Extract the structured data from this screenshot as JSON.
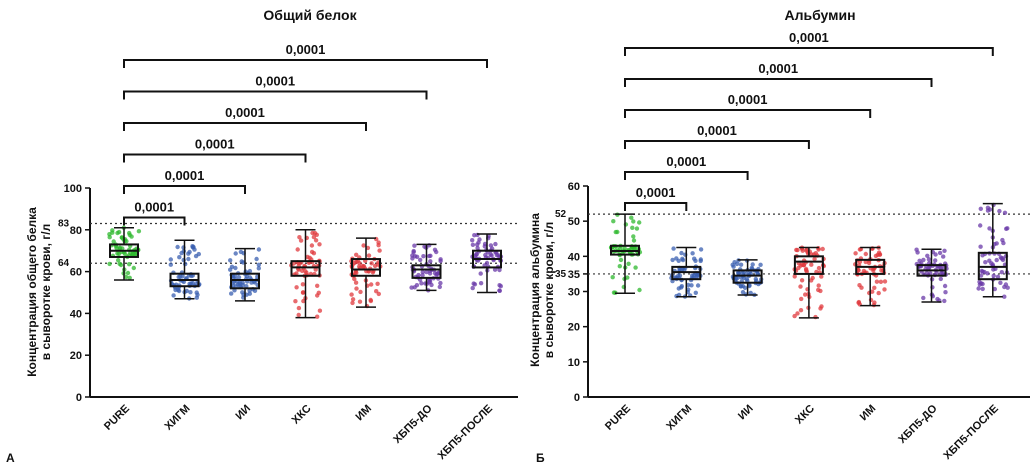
{
  "chart_data": [
    {
      "type": "box",
      "panel_letter": "А",
      "title": "Общий белок",
      "ylabel_line1": "Концентрация общего белка",
      "ylabel_line2": "в сыворотке крови, г/л",
      "ylim": [
        0,
        100
      ],
      "yticks": [
        0,
        20,
        40,
        60,
        80,
        100
      ],
      "reference_lines": [
        64,
        83
      ],
      "reference_labels": [
        "64",
        "83"
      ],
      "categories": [
        "PURE",
        "ХИГМ",
        "ИИ",
        "ХКС",
        "ИМ",
        "ХБП5-ДО",
        "ХБП5-ПОСЛЕ"
      ],
      "colors": [
        "#2eb82e",
        "#3a5fb0",
        "#3a5fb0",
        "#e0393e",
        "#e0393e",
        "#6a3aa8",
        "#6a3aa8"
      ],
      "boxes": [
        {
          "min": 56,
          "q1": 67,
          "median": 70,
          "q3": 73,
          "max": 81
        },
        {
          "min": 47,
          "q1": 53,
          "median": 56,
          "q3": 59,
          "max": 75
        },
        {
          "min": 46,
          "q1": 52,
          "median": 56,
          "q3": 59,
          "max": 71
        },
        {
          "min": 38,
          "q1": 58,
          "median": 62,
          "q3": 65,
          "max": 80
        },
        {
          "min": 43,
          "q1": 58,
          "median": 61,
          "q3": 66,
          "max": 76
        },
        {
          "min": 51,
          "q1": 57,
          "median": 61,
          "q3": 63,
          "max": 73
        },
        {
          "min": 50,
          "q1": 62,
          "median": 66,
          "q3": 70,
          "max": 78
        }
      ],
      "comparisons": [
        {
          "label": "0,0001",
          "from": 0,
          "to": 1
        },
        {
          "label": "0,0001",
          "from": 0,
          "to": 2
        },
        {
          "label": "0,0001",
          "from": 0,
          "to": 3
        },
        {
          "label": "0,0001",
          "from": 0,
          "to": 4
        },
        {
          "label": "0,0001",
          "from": 0,
          "to": 5
        },
        {
          "label": "0,0001",
          "from": 0,
          "to": 6
        }
      ]
    },
    {
      "type": "box",
      "panel_letter": "Б",
      "title": "Альбумин",
      "ylabel_line1": "Концентрация альбумина",
      "ylabel_line2": "в сыворотке крови, г/л",
      "ylim": [
        0,
        60
      ],
      "yticks": [
        0,
        10,
        20,
        30,
        35,
        40,
        50,
        60
      ],
      "reference_lines": [
        35,
        52
      ],
      "reference_labels": [
        "35",
        "52"
      ],
      "categories": [
        "PURE",
        "ХИГМ",
        "ИИ",
        "ХКС",
        "ИМ",
        "ХБП5-ДО",
        "ХБП5-ПОСЛЕ"
      ],
      "colors": [
        "#2eb82e",
        "#3a5fb0",
        "#3a5fb0",
        "#e0393e",
        "#e0393e",
        "#6a3aa8",
        "#6a3aa8"
      ],
      "boxes": [
        {
          "min": 29.5,
          "q1": 40.5,
          "median": 41.5,
          "q3": 43,
          "max": 52
        },
        {
          "min": 28.5,
          "q1": 33.5,
          "median": 35.5,
          "q3": 37,
          "max": 42.5
        },
        {
          "min": 29,
          "q1": 32.5,
          "median": 34.5,
          "q3": 36,
          "max": 39
        },
        {
          "min": 22.5,
          "q1": 35,
          "median": 38.5,
          "q3": 40,
          "max": 42.5
        },
        {
          "min": 26,
          "q1": 35,
          "median": 37,
          "q3": 39,
          "max": 42.5
        },
        {
          "min": 27,
          "q1": 34.5,
          "median": 36,
          "q3": 37.5,
          "max": 42
        },
        {
          "min": 28.5,
          "q1": 33.5,
          "median": 37,
          "q3": 41,
          "max": 55
        }
      ],
      "comparisons": [
        {
          "label": "0,0001",
          "from": 0,
          "to": 1
        },
        {
          "label": "0,0001",
          "from": 0,
          "to": 2
        },
        {
          "label": "0,0001",
          "from": 0,
          "to": 3
        },
        {
          "label": "0,0001",
          "from": 0,
          "to": 4
        },
        {
          "label": "0,0001",
          "from": 0,
          "to": 5
        },
        {
          "label": "0,0001",
          "from": 0,
          "to": 6
        }
      ]
    }
  ]
}
